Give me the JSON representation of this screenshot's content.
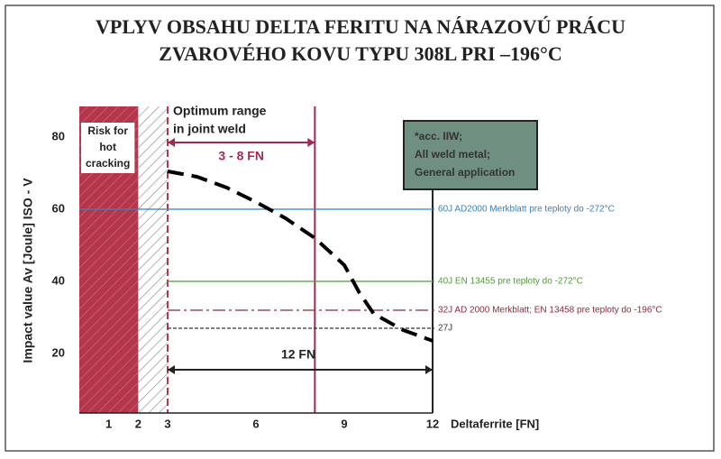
{
  "chart_data": {
    "type": "line",
    "title": [
      "VPLYV OBSAHU DELTA FERITU NA NÁRAZOVÚ PRÁCU",
      "ZVAROVÉHO KOVU TYPU 308L PRI –196°C"
    ],
    "y_label": "Impact value Av [Joule] ISO - V",
    "x_label": "Deltaferrite [FN]",
    "xlim": [
      0,
      14.5
    ],
    "ylim": [
      3.5,
      88.5
    ],
    "xticks": [
      1,
      2,
      3,
      6,
      9,
      12
    ],
    "yticks": [
      20,
      40,
      60,
      80
    ],
    "series": [
      {
        "color": "#000000",
        "x": [
          3,
          4,
          5,
          6,
          7,
          8,
          9,
          9.5,
          10,
          11,
          12
        ],
        "values": [
          70.5,
          69,
          66,
          62,
          57.5,
          52,
          44.5,
          37,
          31,
          26.5,
          23.5
        ]
      }
    ],
    "reference_lines": [
      {
        "value": 60,
        "label": "60J AD2000 Merkblatt pre teploty do -272°C",
        "color": "#3a7fc0"
      },
      {
        "value": 40,
        "label": "40J EN 13455 pre teploty do -272°C",
        "color": "#4e9a3a"
      },
      {
        "value": 32,
        "label": "32J AD 2000 Merkblatt; EN 13458 pre teploty do -196°C",
        "color": "#8b2a3a"
      },
      {
        "value": 27,
        "label": "27J",
        "color": "#333333"
      }
    ],
    "zones": [
      {
        "from": 0,
        "to": 2,
        "label": [
          "Risk for",
          "hot",
          "cracking"
        ],
        "color": "#b5364a"
      },
      {
        "from": 2,
        "to": 3
      }
    ],
    "vertical_lines": [
      3,
      8,
      12
    ],
    "optimum_label": [
      "Optimum range",
      "in joint weld"
    ],
    "arrows": [
      {
        "from": 3,
        "to": 8,
        "label": "3 - 8 FN"
      },
      {
        "from": 3,
        "to": 12,
        "label": "12 FN"
      }
    ],
    "note_box": [
      "*acc. IIW;",
      "All weld metal;",
      "General application"
    ]
  }
}
